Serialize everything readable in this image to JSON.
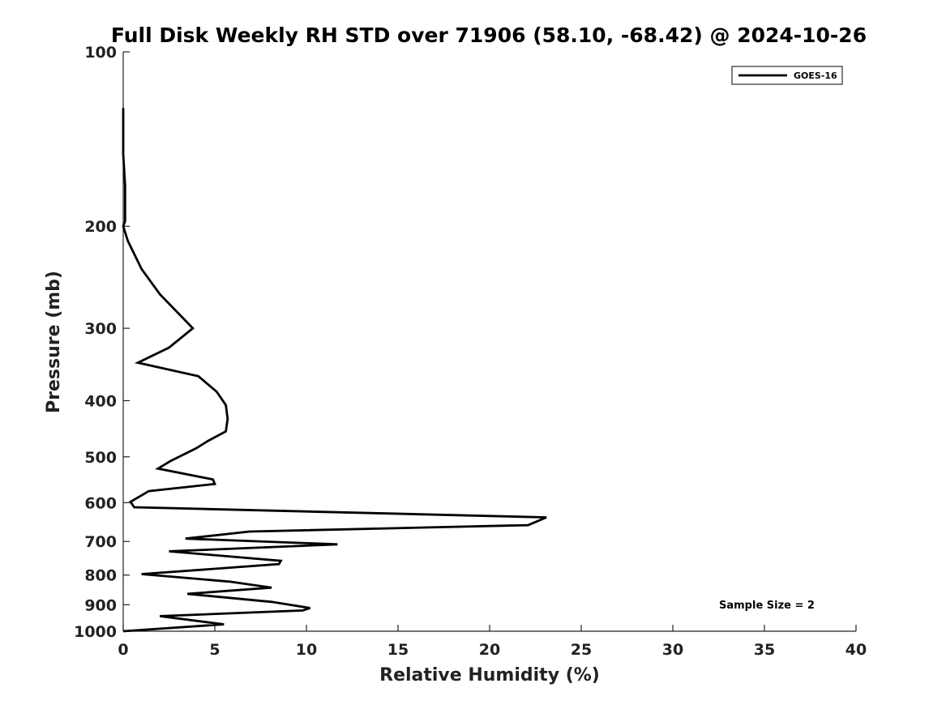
{
  "chart_data": {
    "type": "line",
    "title": "Full Disk Weekly RH STD over 71906 (58.10, -68.42) @ 2024-10-26",
    "xlabel": "Relative Humidity (%)",
    "ylabel": "Pressure (mb)",
    "xlim": [
      0,
      40
    ],
    "ylim": [
      1000,
      100
    ],
    "y_scale": "log",
    "x_ticks": [
      0,
      5,
      10,
      15,
      20,
      25,
      30,
      35,
      40
    ],
    "x_tick_labels": [
      "0",
      "5",
      "10",
      "15",
      "20",
      "25",
      "30",
      "35",
      "40"
    ],
    "y_ticks": [
      100,
      200,
      300,
      400,
      500,
      600,
      700,
      800,
      900,
      1000
    ],
    "y_tick_labels": [
      "100",
      "200",
      "300",
      "400",
      "500",
      "600",
      "700",
      "800",
      "900",
      "1000"
    ],
    "grid": false,
    "legend_position": "top-right",
    "annotation": "Sample Size = 2",
    "series": [
      {
        "name": "GOES-16",
        "color": "#000000",
        "x": [
          0.0,
          0.0,
          0.1,
          0.1,
          0.1,
          0.0,
          0.25,
          1.0,
          2.0,
          3.8,
          2.5,
          0.8,
          4.1,
          5.1,
          5.6,
          5.7,
          5.6,
          4.6,
          4.0,
          2.6,
          1.9,
          4.9,
          5.0,
          1.4,
          0.4,
          0.6,
          23.1,
          22.1,
          6.9,
          3.4,
          11.7,
          2.5,
          8.6,
          8.5,
          1.0,
          5.8,
          8.1,
          3.5,
          8.1,
          10.2,
          9.8,
          2.0,
          5.5,
          0.0
        ],
        "y": [
          125,
          150,
          170,
          190,
          196,
          200,
          212,
          237,
          262,
          300,
          324,
          344,
          363,
          386,
          407,
          430,
          452,
          470,
          483,
          508,
          524,
          547,
          557,
          573,
          598,
          611,
          636,
          656,
          673,
          692,
          708,
          728,
          756,
          766,
          797,
          821,
          841,
          862,
          890,
          912,
          921,
          942,
          973,
          1000
        ]
      }
    ]
  }
}
